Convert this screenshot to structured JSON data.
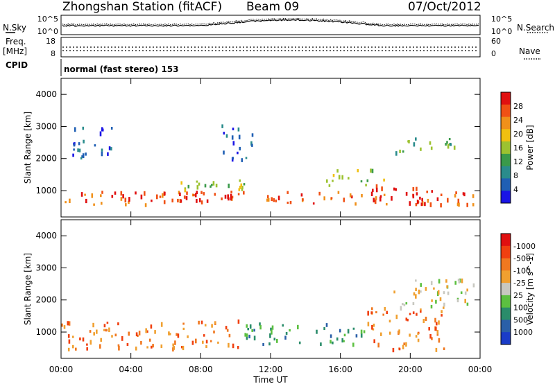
{
  "header": {
    "station": "Zhongshan Station (fitACF)",
    "beam": "Beam 09",
    "date": "07/Oct/2012"
  },
  "noise_panel": {
    "left_label": "N.Sky",
    "right_label": "N.Search",
    "left_ticks": [
      "10^5",
      "10^0"
    ],
    "right_ticks": [
      "10^5",
      "10^0"
    ]
  },
  "freq_panel": {
    "left_label_top": "Freq.",
    "left_label_unit": "[MHz]",
    "right_label": "Nave",
    "left_ticks": [
      "18",
      "8"
    ],
    "right_ticks": [
      "60",
      "0"
    ]
  },
  "cpid": {
    "label": "CPID",
    "value": "normal (fast stereo) 153"
  },
  "x_axis": {
    "label": "Time UT",
    "ticks": [
      "00:00",
      "04:00",
      "08:00",
      "12:00",
      "16:00",
      "20:00",
      "00:00"
    ]
  },
  "chart_data": [
    {
      "type": "heatmap",
      "name": "power",
      "ylabel": "Slant Range [km]",
      "ylim": [
        180,
        4500
      ],
      "y_ticks": [
        "1000",
        "2000",
        "3000",
        "4000"
      ],
      "y_tick_values": [
        1000,
        2000,
        3000,
        4000
      ],
      "x_ticks": [
        "00:00",
        "04:00",
        "08:00",
        "12:00",
        "16:00",
        "20:00",
        "00:00"
      ],
      "colorbar": {
        "label": "Power [dB]",
        "ticks": [
          "4",
          "8",
          "12",
          "16",
          "20",
          "24",
          "28"
        ],
        "colors": [
          "#1a14e6",
          "#1f5fb4",
          "#2a8c8c",
          "#3a9a4a",
          "#9cc230",
          "#f0c010",
          "#f0901a",
          "#f05014",
          "#e01010"
        ]
      },
      "regions": [
        {
          "t": [
            0.2,
            24.0
          ],
          "r": [
            600,
            1000
          ],
          "level": 7
        },
        {
          "t": [
            2.0,
            10.5
          ],
          "r": [
            700,
            1000
          ],
          "level": 8
        },
        {
          "t": [
            17.5,
            21.5
          ],
          "r": [
            600,
            1200
          ],
          "level": 8
        },
        {
          "t": [
            6.0,
            11.0
          ],
          "r": [
            1000,
            1400
          ],
          "level": 4
        },
        {
          "t": [
            15.0,
            18.5
          ],
          "r": [
            1200,
            1700
          ],
          "level": 4
        },
        {
          "t": [
            19.0,
            22.5
          ],
          "r": [
            2200,
            2700
          ],
          "level": 3
        },
        {
          "t": [
            0.5,
            3.0
          ],
          "r": [
            2000,
            3000
          ],
          "level": 1
        },
        {
          "t": [
            9.0,
            11.0
          ],
          "r": [
            2000,
            3100
          ],
          "level": 1
        }
      ]
    },
    {
      "type": "heatmap",
      "name": "velocity",
      "ylabel": "Slant Range [km]",
      "ylim": [
        180,
        4500
      ],
      "y_ticks": [
        "1000",
        "2000",
        "3000",
        "4000"
      ],
      "y_tick_values": [
        1000,
        2000,
        3000,
        4000
      ],
      "x_ticks": [
        "00:00",
        "04:00",
        "08:00",
        "12:00",
        "16:00",
        "20:00",
        "00:00"
      ],
      "colorbar": {
        "label": "Velocity [m s^-1]",
        "ticks": [
          "1000",
          "500",
          "100",
          "25",
          "-25",
          "-100",
          "-500",
          "-1000"
        ],
        "colors": [
          "#1a3cc8",
          "#2a5fa8",
          "#2a8c6a",
          "#5cc040",
          "#c8c8c0",
          "#f0a030",
          "#f07820",
          "#f04010",
          "#e01010"
        ]
      },
      "regions": [
        {
          "t": [
            0.0,
            10.5
          ],
          "r": [
            500,
            1400
          ],
          "level": 6
        },
        {
          "t": [
            10.5,
            17.5
          ],
          "r": [
            600,
            1300
          ],
          "level": 2
        },
        {
          "t": [
            17.5,
            22.0
          ],
          "r": [
            500,
            1800
          ],
          "level": 6
        },
        {
          "t": [
            19.0,
            24.0
          ],
          "r": [
            1800,
            2700
          ],
          "level": 4
        }
      ]
    }
  ]
}
